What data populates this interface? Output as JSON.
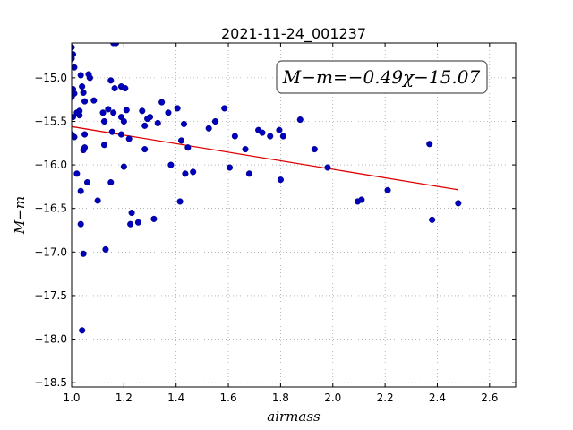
{
  "chart_data": {
    "type": "scatter",
    "title": "2021-11-24_001237",
    "xlabel": "airmass",
    "ylabel": "M−m",
    "xlim": [
      1.0,
      2.7
    ],
    "ylim": [
      -18.55,
      -14.6
    ],
    "xticks": [
      "1.0",
      "1.2",
      "1.4",
      "1.6",
      "1.8",
      "2.0",
      "2.2",
      "2.4",
      "2.6"
    ],
    "yticks": [
      "−15.0",
      "−15.5",
      "−16.0",
      "−16.5",
      "−17.0",
      "−17.5",
      "−18.0",
      "−18.5"
    ],
    "grid": true,
    "annotation": "M−m=−0.49χ−15.07",
    "fit": {
      "slope": -0.49,
      "intercept": -15.07,
      "x_range": [
        1.0,
        2.48
      ],
      "color": "#e00000"
    },
    "marker_color": "#0000bb",
    "points": [
      [
        1.0,
        -14.65
      ],
      [
        1.005,
        -14.73
      ],
      [
        1.0,
        -14.78
      ],
      [
        1.01,
        -14.88
      ],
      [
        1.005,
        -15.13
      ],
      [
        1.01,
        -15.18
      ],
      [
        1.0,
        -15.22
      ],
      [
        1.005,
        -15.45
      ],
      [
        1.0,
        -15.65
      ],
      [
        1.01,
        -15.68
      ],
      [
        1.02,
        -15.4
      ],
      [
        1.03,
        -15.43
      ],
      [
        1.03,
        -15.38
      ],
      [
        1.035,
        -14.97
      ],
      [
        1.04,
        -15.1
      ],
      [
        1.045,
        -15.17
      ],
      [
        1.05,
        -15.27
      ],
      [
        1.045,
        -15.83
      ],
      [
        1.05,
        -15.65
      ],
      [
        1.05,
        -15.8
      ],
      [
        1.02,
        -16.1
      ],
      [
        1.035,
        -16.3
      ],
      [
        1.06,
        -16.2
      ],
      [
        1.035,
        -16.68
      ],
      [
        1.045,
        -17.02
      ],
      [
        1.04,
        -17.9
      ],
      [
        1.065,
        -14.96
      ],
      [
        1.07,
        -15.0
      ],
      [
        1.085,
        -15.26
      ],
      [
        1.1,
        -16.41
      ],
      [
        1.12,
        -15.4
      ],
      [
        1.125,
        -15.5
      ],
      [
        1.125,
        -15.77
      ],
      [
        1.13,
        -16.97
      ],
      [
        1.14,
        -15.36
      ],
      [
        1.15,
        -15.03
      ],
      [
        1.155,
        -15.62
      ],
      [
        1.15,
        -16.2
      ],
      [
        1.155,
        -14.55
      ],
      [
        1.16,
        -14.6
      ],
      [
        1.17,
        -14.6
      ],
      [
        1.16,
        -15.4
      ],
      [
        1.165,
        -15.12
      ],
      [
        1.19,
        -15.1
      ],
      [
        1.205,
        -15.12
      ],
      [
        1.19,
        -15.45
      ],
      [
        1.2,
        -15.5
      ],
      [
        1.21,
        -15.37
      ],
      [
        1.19,
        -15.65
      ],
      [
        1.2,
        -16.02
      ],
      [
        1.22,
        -15.7
      ],
      [
        1.23,
        -16.55
      ],
      [
        1.225,
        -16.68
      ],
      [
        1.255,
        -16.66
      ],
      [
        1.27,
        -15.38
      ],
      [
        1.28,
        -15.55
      ],
      [
        1.29,
        -15.47
      ],
      [
        1.3,
        -15.45
      ],
      [
        1.28,
        -15.82
      ],
      [
        1.315,
        -16.62
      ],
      [
        1.33,
        -15.52
      ],
      [
        1.345,
        -15.28
      ],
      [
        1.37,
        -15.4
      ],
      [
        1.38,
        -16.0
      ],
      [
        1.405,
        -15.35
      ],
      [
        1.415,
        -16.42
      ],
      [
        1.42,
        -15.72
      ],
      [
        1.43,
        -15.53
      ],
      [
        1.435,
        -16.1
      ],
      [
        1.445,
        -15.8
      ],
      [
        1.465,
        -16.08
      ],
      [
        1.525,
        -15.58
      ],
      [
        1.55,
        -15.5
      ],
      [
        1.585,
        -15.35
      ],
      [
        1.605,
        -16.03
      ],
      [
        1.625,
        -15.67
      ],
      [
        1.665,
        -15.82
      ],
      [
        1.68,
        -16.1
      ],
      [
        1.715,
        -15.6
      ],
      [
        1.73,
        -15.63
      ],
      [
        1.76,
        -15.67
      ],
      [
        1.795,
        -15.6
      ],
      [
        1.8,
        -16.17
      ],
      [
        1.81,
        -15.67
      ],
      [
        1.875,
        -15.48
      ],
      [
        1.93,
        -15.82
      ],
      [
        1.98,
        -16.03
      ],
      [
        2.095,
        -16.42
      ],
      [
        2.11,
        -16.4
      ],
      [
        2.21,
        -16.29
      ],
      [
        2.37,
        -15.76
      ],
      [
        2.38,
        -16.63
      ],
      [
        2.48,
        -16.44
      ]
    ]
  }
}
